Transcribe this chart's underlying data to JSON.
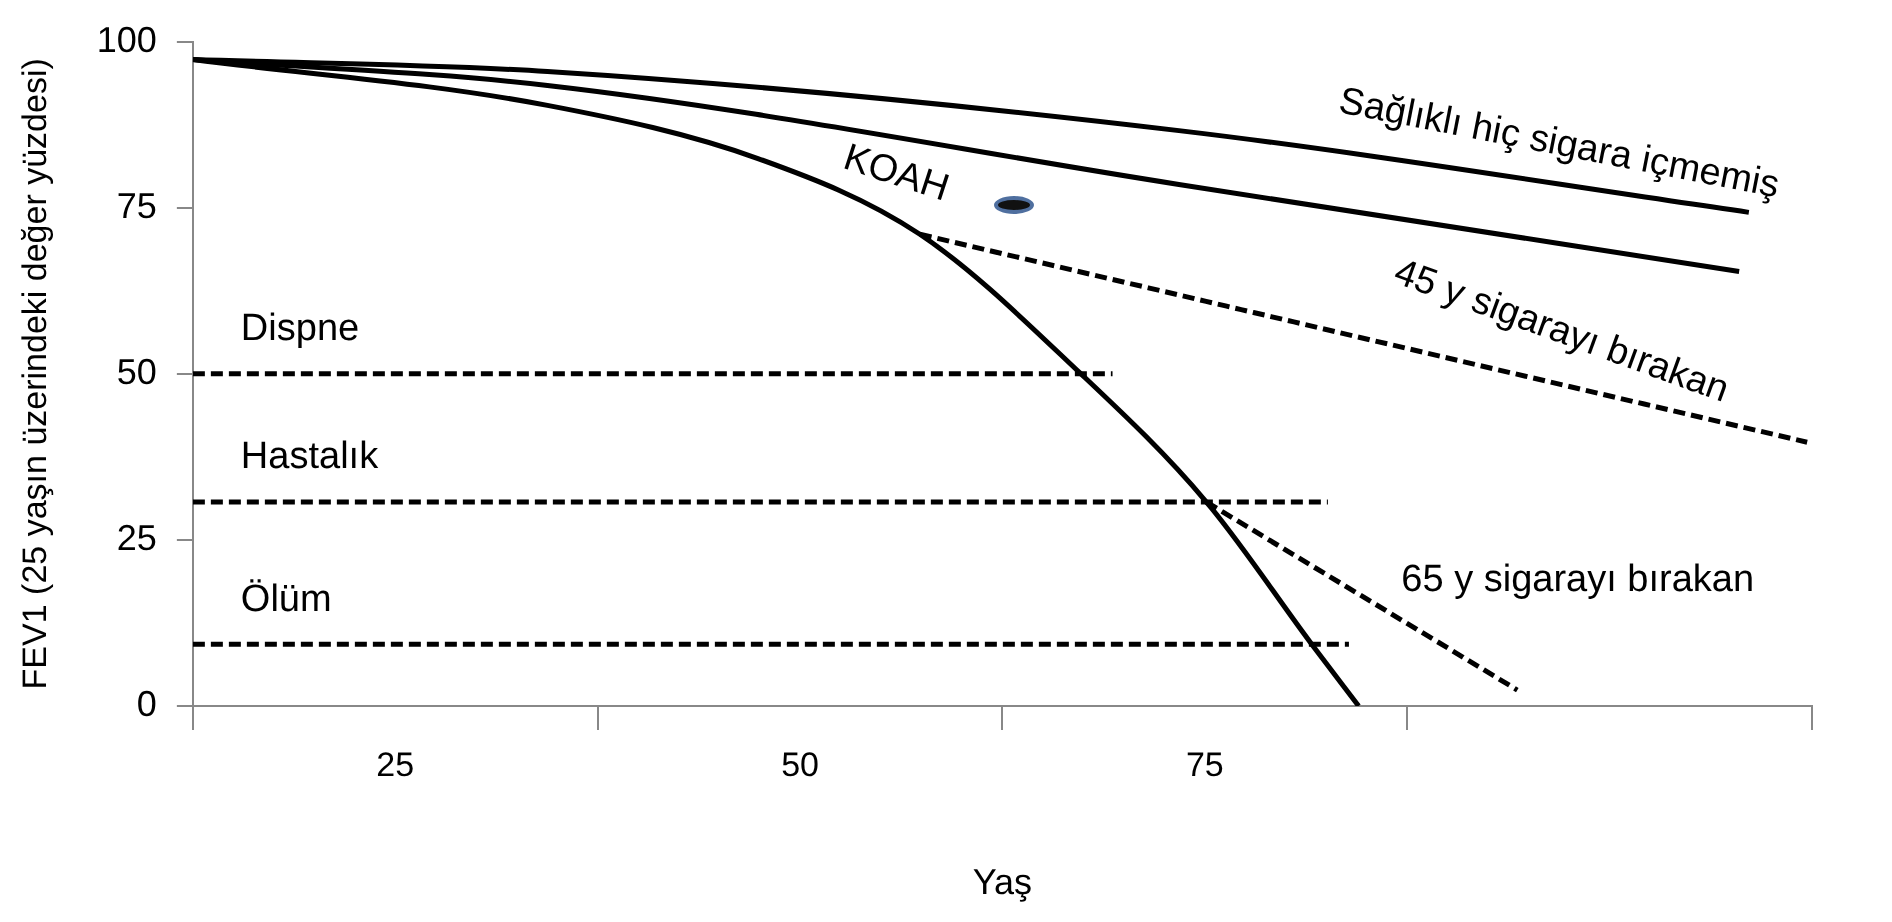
{
  "chart_data": {
    "type": "line",
    "xlabel": "Yaş",
    "ylabel": "FEV1 (25 yaşın üzerindeki değer yüzdesi)",
    "xlim": [
      12.5,
      112.5
    ],
    "xticks": [
      {
        "value": 12.5,
        "label": null
      },
      25,
      {
        "value": 37.5,
        "label": null
      },
      50,
      {
        "value": 62.5,
        "label": null
      },
      75,
      {
        "value": 87.5,
        "label": null
      },
      {
        "value": 112.5,
        "label": null
      }
    ],
    "ylim": [
      0,
      100
    ],
    "yticks": [
      0,
      25,
      50,
      75,
      100
    ],
    "grid": false,
    "legend": false,
    "marker": "none",
    "series": [
      {
        "name": "Sağlıklı hiç sigara içmemiş",
        "color": "#000000",
        "line_style": "solid",
        "x": [
          12.5,
          34.4,
          73.4,
          108.6
        ],
        "values": [
          97.3,
          95.5,
          86.6,
          74.3
        ]
      },
      {
        "color": "#000000",
        "line_style": "solid",
        "x": [
          12.5,
          34.4,
          73.4,
          108
        ],
        "values": [
          97.3,
          93.4,
          78.5,
          65.4
        ]
      },
      {
        "name": "KOAH",
        "color": "#000000",
        "line_style": "solid",
        "x": [
          12.5,
          34.4,
          47.4,
          57.4,
          67.3,
          75.1,
          81.6,
          84.5
        ],
        "values": [
          97.3,
          90.4,
          82.4,
          71,
          50.1,
          30.7,
          9.3,
          0
        ]
      },
      {
        "name": "45 y sigarayı bırakan",
        "color": "#000000",
        "line_style": "dashed",
        "x": [
          57.4,
          112.2
        ],
        "values": [
          71,
          39.7
        ]
      },
      {
        "name": "65 y sigarayı bırakan",
        "color": "#000000",
        "line_style": "dashed",
        "x": [
          75.1,
          94.3
        ],
        "values": [
          30.7,
          2.4
        ]
      },
      {
        "name": "Dispne",
        "color": "#000000",
        "line_style": "dashed",
        "x": [
          12.5,
          69.3
        ],
        "values": [
          50,
          50
        ]
      },
      {
        "name": "Hastalık",
        "color": "#000000",
        "line_style": "dashed",
        "x": [
          12.5,
          82.6
        ],
        "values": [
          30.7,
          30.7
        ]
      },
      {
        "name": "Ölüm",
        "color": "#000000",
        "line_style": "dashed",
        "x": [
          12.5,
          83.9
        ],
        "values": [
          9.3,
          9.3
        ]
      }
    ]
  }
}
